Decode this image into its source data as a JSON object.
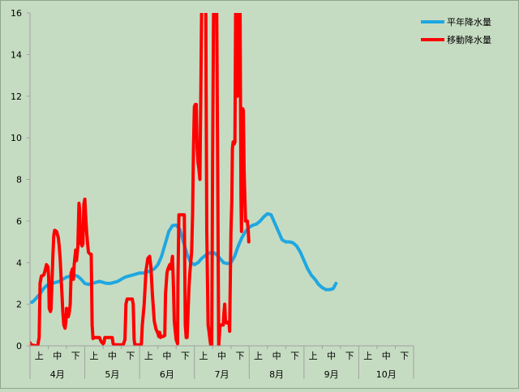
{
  "chart_data": {
    "type": "line",
    "ylim": [
      0,
      16
    ],
    "yticks": [
      0,
      2,
      4,
      6,
      8,
      10,
      12,
      14,
      16
    ],
    "months": [
      "4月",
      "5月",
      "6月",
      "7月",
      "8月",
      "9月",
      "10月"
    ],
    "dekads": [
      "上",
      "中",
      "下"
    ],
    "grid": false,
    "legend_position": "top-right",
    "background_color": "#c6dcc2",
    "series": [
      {
        "name": "平年降水量",
        "color": "#1fa7e1",
        "points": [
          [
            0.0,
            2.1
          ],
          [
            0.12,
            2.1
          ],
          [
            0.25,
            2.2
          ],
          [
            0.4,
            2.35
          ],
          [
            0.55,
            2.5
          ],
          [
            0.7,
            2.7
          ],
          [
            0.85,
            2.85
          ],
          [
            1.0,
            2.95
          ],
          [
            1.2,
            3.0
          ],
          [
            1.4,
            3.05
          ],
          [
            1.6,
            3.1
          ],
          [
            1.8,
            3.2
          ],
          [
            2.0,
            3.3
          ],
          [
            2.2,
            3.35
          ],
          [
            2.4,
            3.4
          ],
          [
            2.6,
            3.35
          ],
          [
            2.8,
            3.2
          ],
          [
            3.0,
            3.0
          ],
          [
            3.2,
            2.95
          ],
          [
            3.4,
            3.0
          ],
          [
            3.6,
            3.05
          ],
          [
            3.8,
            3.1
          ],
          [
            4.0,
            3.05
          ],
          [
            4.2,
            3.0
          ],
          [
            4.4,
            3.0
          ],
          [
            4.6,
            3.05
          ],
          [
            4.8,
            3.1
          ],
          [
            5.0,
            3.2
          ],
          [
            5.2,
            3.3
          ],
          [
            5.4,
            3.35
          ],
          [
            5.6,
            3.4
          ],
          [
            5.8,
            3.45
          ],
          [
            6.0,
            3.5
          ],
          [
            6.2,
            3.5
          ],
          [
            6.4,
            3.55
          ],
          [
            6.6,
            3.6
          ],
          [
            6.8,
            3.7
          ],
          [
            7.0,
            3.9
          ],
          [
            7.2,
            4.3
          ],
          [
            7.4,
            4.9
          ],
          [
            7.6,
            5.5
          ],
          [
            7.8,
            5.78
          ],
          [
            8.0,
            5.8
          ],
          [
            8.2,
            5.6
          ],
          [
            8.4,
            5.0
          ],
          [
            8.6,
            4.4
          ],
          [
            8.8,
            4.0
          ],
          [
            9.0,
            3.9
          ],
          [
            9.2,
            4.0
          ],
          [
            9.4,
            4.2
          ],
          [
            9.6,
            4.35
          ],
          [
            9.8,
            4.45
          ],
          [
            10.0,
            4.5
          ],
          [
            10.2,
            4.4
          ],
          [
            10.4,
            4.2
          ],
          [
            10.6,
            4.0
          ],
          [
            10.8,
            3.95
          ],
          [
            11.0,
            4.0
          ],
          [
            11.2,
            4.3
          ],
          [
            11.4,
            4.8
          ],
          [
            11.6,
            5.2
          ],
          [
            11.8,
            5.5
          ],
          [
            12.0,
            5.7
          ],
          [
            12.2,
            5.8
          ],
          [
            12.4,
            5.85
          ],
          [
            12.6,
            6.0
          ],
          [
            12.8,
            6.2
          ],
          [
            13.0,
            6.35
          ],
          [
            13.2,
            6.3
          ],
          [
            13.4,
            5.9
          ],
          [
            13.6,
            5.5
          ],
          [
            13.8,
            5.1
          ],
          [
            14.0,
            5.0
          ],
          [
            14.2,
            5.0
          ],
          [
            14.4,
            4.95
          ],
          [
            14.6,
            4.8
          ],
          [
            14.8,
            4.5
          ],
          [
            15.0,
            4.1
          ],
          [
            15.2,
            3.7
          ],
          [
            15.4,
            3.4
          ],
          [
            15.6,
            3.2
          ],
          [
            15.8,
            2.95
          ],
          [
            16.0,
            2.8
          ],
          [
            16.2,
            2.7
          ],
          [
            16.4,
            2.7
          ],
          [
            16.6,
            2.75
          ],
          [
            16.75,
            3.0
          ]
        ]
      },
      {
        "name": "移動降水量",
        "color": "#ff0000",
        "points": [
          [
            0.0,
            0.15
          ],
          [
            0.05,
            0.05
          ],
          [
            0.3,
            0.0
          ],
          [
            0.42,
            0.0
          ],
          [
            0.5,
            0.4
          ],
          [
            0.55,
            3.0
          ],
          [
            0.62,
            3.35
          ],
          [
            0.75,
            3.4
          ],
          [
            0.82,
            3.6
          ],
          [
            0.9,
            3.9
          ],
          [
            0.98,
            3.8
          ],
          [
            1.02,
            3.3
          ],
          [
            1.05,
            1.8
          ],
          [
            1.12,
            1.65
          ],
          [
            1.15,
            1.75
          ],
          [
            1.18,
            2.5
          ],
          [
            1.25,
            4.3
          ],
          [
            1.3,
            5.3
          ],
          [
            1.35,
            5.55
          ],
          [
            1.45,
            5.5
          ],
          [
            1.55,
            5.2
          ],
          [
            1.6,
            4.8
          ],
          [
            1.65,
            4.2
          ],
          [
            1.7,
            3.3
          ],
          [
            1.75,
            2.5
          ],
          [
            1.8,
            1.6
          ],
          [
            1.85,
            1.0
          ],
          [
            1.92,
            0.85
          ],
          [
            1.97,
            1.2
          ],
          [
            2.0,
            1.8
          ],
          [
            2.05,
            1.5
          ],
          [
            2.1,
            1.4
          ],
          [
            2.15,
            1.6
          ],
          [
            2.2,
            2.0
          ],
          [
            2.25,
            3.5
          ],
          [
            2.32,
            3.7
          ],
          [
            2.38,
            3.2
          ],
          [
            2.42,
            3.9
          ],
          [
            2.5,
            4.6
          ],
          [
            2.55,
            4.1
          ],
          [
            2.62,
            4.8
          ],
          [
            2.68,
            6.85
          ],
          [
            2.72,
            6.5
          ],
          [
            2.76,
            5.2
          ],
          [
            2.8,
            4.9
          ],
          [
            2.85,
            4.8
          ],
          [
            2.9,
            4.9
          ],
          [
            2.95,
            6.8
          ],
          [
            3.0,
            7.05
          ],
          [
            3.05,
            6.2
          ],
          [
            3.1,
            5.5
          ],
          [
            3.15,
            4.9
          ],
          [
            3.2,
            4.5
          ],
          [
            3.3,
            4.4
          ],
          [
            3.35,
            4.4
          ],
          [
            3.4,
            1.0
          ],
          [
            3.45,
            0.35
          ],
          [
            3.5,
            0.4
          ],
          [
            3.55,
            0.4
          ],
          [
            3.8,
            0.4
          ],
          [
            3.9,
            0.2
          ],
          [
            4.0,
            0.1
          ],
          [
            4.05,
            0.15
          ],
          [
            4.1,
            0.4
          ],
          [
            4.3,
            0.4
          ],
          [
            4.5,
            0.4
          ],
          [
            4.55,
            0.1
          ],
          [
            4.6,
            0.05
          ],
          [
            5.1,
            0.05
          ],
          [
            5.2,
            0.3
          ],
          [
            5.25,
            2.0
          ],
          [
            5.32,
            2.25
          ],
          [
            5.6,
            2.25
          ],
          [
            5.65,
            2.0
          ],
          [
            5.7,
            0.3
          ],
          [
            5.75,
            0.0
          ],
          [
            5.8,
            0.05
          ],
          [
            6.0,
            0.05
          ],
          [
            6.05,
            0.0
          ],
          [
            6.1,
            0.1
          ],
          [
            6.15,
            1.0
          ],
          [
            6.25,
            2.0
          ],
          [
            6.35,
            3.6
          ],
          [
            6.45,
            4.2
          ],
          [
            6.55,
            4.3
          ],
          [
            6.62,
            3.8
          ],
          [
            6.7,
            2.5
          ],
          [
            6.8,
            1.2
          ],
          [
            6.9,
            0.8
          ],
          [
            7.0,
            0.6
          ],
          [
            7.05,
            0.45
          ],
          [
            7.1,
            0.65
          ],
          [
            7.15,
            0.4
          ],
          [
            7.2,
            0.45
          ],
          [
            7.3,
            0.45
          ],
          [
            7.38,
            0.5
          ],
          [
            7.42,
            2.5
          ],
          [
            7.5,
            3.5
          ],
          [
            7.55,
            3.7
          ],
          [
            7.6,
            3.8
          ],
          [
            7.65,
            3.9
          ],
          [
            7.7,
            3.7
          ],
          [
            7.75,
            4.0
          ],
          [
            7.8,
            4.3
          ],
          [
            7.85,
            3.0
          ],
          [
            7.9,
            1.2
          ],
          [
            7.95,
            0.7
          ],
          [
            8.0,
            0.3
          ],
          [
            8.08,
            0.1
          ],
          [
            8.1,
            3.0
          ],
          [
            8.15,
            6.3
          ],
          [
            8.3,
            6.3
          ],
          [
            8.45,
            6.3
          ],
          [
            8.5,
            1.0
          ],
          [
            8.55,
            0.4
          ],
          [
            8.6,
            0.4
          ],
          [
            8.65,
            1.5
          ],
          [
            8.7,
            2.8
          ],
          [
            8.75,
            3.5
          ],
          [
            8.8,
            4.0
          ],
          [
            8.85,
            4.5
          ],
          [
            8.9,
            6.3
          ],
          [
            8.95,
            9.5
          ],
          [
            9.0,
            11.5
          ],
          [
            9.05,
            11.6
          ],
          [
            9.1,
            11.6
          ],
          [
            9.15,
            9.5
          ],
          [
            9.2,
            8.8
          ],
          [
            9.25,
            8.5
          ],
          [
            9.3,
            8.0
          ],
          [
            9.35,
            12.0
          ],
          [
            9.4,
            16.5
          ],
          [
            9.55,
            16.5
          ],
          [
            9.62,
            16.5
          ],
          [
            9.68,
            5.5
          ],
          [
            9.75,
            1.0
          ],
          [
            9.8,
            0.7
          ],
          [
            9.85,
            0.3
          ],
          [
            9.9,
            0.0
          ],
          [
            9.95,
            0.0
          ],
          [
            10.0,
            9.0
          ],
          [
            10.05,
            16.5
          ],
          [
            10.12,
            16.5
          ],
          [
            10.22,
            16.5
          ],
          [
            10.28,
            8.0
          ],
          [
            10.33,
            0.0
          ],
          [
            10.4,
            0.9
          ],
          [
            10.45,
            1.0
          ],
          [
            10.5,
            1.0
          ],
          [
            10.58,
            1.0
          ],
          [
            10.62,
            1.6
          ],
          [
            10.66,
            2.0
          ],
          [
            10.7,
            1.2
          ],
          [
            10.75,
            1.1
          ],
          [
            10.8,
            1.1
          ],
          [
            10.85,
            1.15
          ],
          [
            10.9,
            1.1
          ],
          [
            10.93,
            0.7
          ],
          [
            10.95,
            2.0
          ],
          [
            11.0,
            5.5
          ],
          [
            11.05,
            7.0
          ],
          [
            11.08,
            9.5
          ],
          [
            11.12,
            9.8
          ],
          [
            11.18,
            9.7
          ],
          [
            11.22,
            9.8
          ],
          [
            11.26,
            16.5
          ],
          [
            11.3,
            13.0
          ],
          [
            11.35,
            12.0
          ],
          [
            11.4,
            16.5
          ],
          [
            11.45,
            15.0
          ],
          [
            11.5,
            16.5
          ],
          [
            11.55,
            7.0
          ],
          [
            11.58,
            5.5
          ],
          [
            11.62,
            9.5
          ],
          [
            11.65,
            11.4
          ],
          [
            11.68,
            11.3
          ],
          [
            11.72,
            8.5
          ],
          [
            11.75,
            7.5
          ],
          [
            11.8,
            6.0
          ],
          [
            11.9,
            6.0
          ],
          [
            11.95,
            5.5
          ],
          [
            11.98,
            5.0
          ]
        ]
      }
    ]
  }
}
